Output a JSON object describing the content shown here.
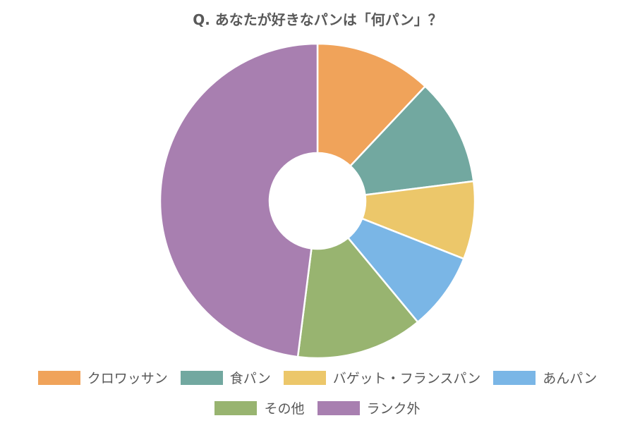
{
  "chart_data": {
    "type": "donut",
    "title": "Q. あなたが好きなパンは「何パン」？",
    "categories": [
      "クロワッサン",
      "食パン",
      "バゲット・フランスパン",
      "あんパン",
      "その他",
      "ランク外"
    ],
    "values": [
      12,
      11,
      8,
      8,
      13,
      48
    ],
    "colors": [
      "#f0a35a",
      "#72a8a0",
      "#ecc76a",
      "#7ab6e6",
      "#98b470",
      "#a87fb0"
    ],
    "legend": "bottom"
  }
}
